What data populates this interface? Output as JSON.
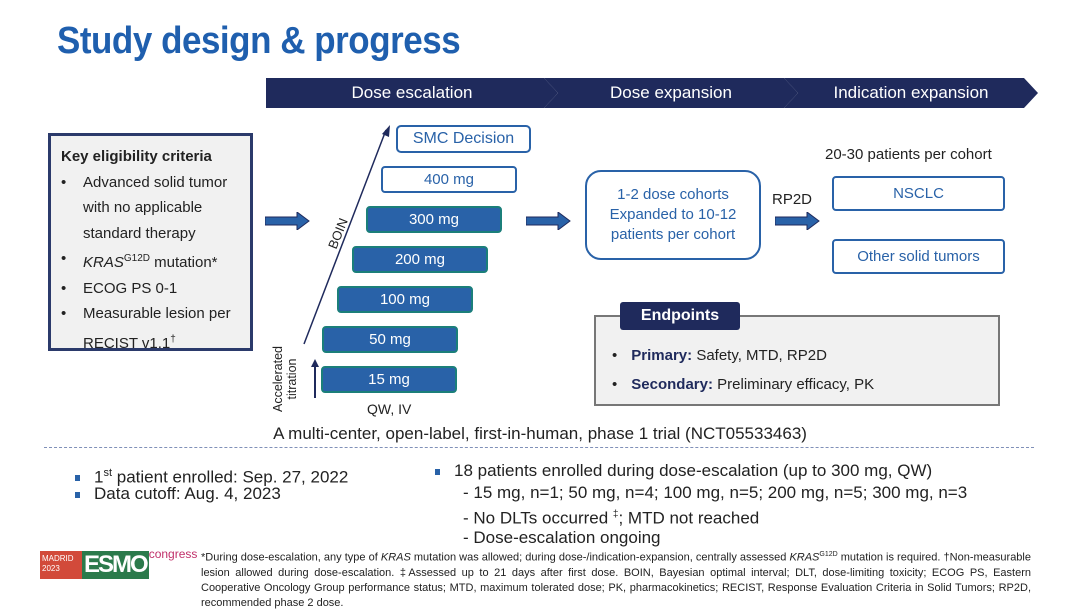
{
  "title": "Study design & progress",
  "phases": [
    "Dose escalation",
    "Dose expansion",
    "Indication expansion"
  ],
  "criteria": {
    "heading": "Key eligibility criteria",
    "items": [
      {
        "pre": "",
        "italic": "",
        "text": "Advanced solid tumor with no applicable standard therapy"
      },
      {
        "italic": "KRAS",
        "sup": "G12D",
        "text": " mutation*"
      },
      {
        "text": "ECOG PS 0-1"
      },
      {
        "text": "Measurable lesion per RECIST v1.1",
        "sup": "†"
      }
    ]
  },
  "escalation": {
    "smc": "SMC Decision",
    "doses": [
      "400 mg",
      "300 mg",
      "200 mg",
      "100 mg",
      "50 mg",
      "15 mg"
    ],
    "boin": "BOIN",
    "accel": "Accelerated titration",
    "schedule": "QW, IV"
  },
  "expansion": {
    "text": "1-2 dose cohorts Expanded to 10-12 patients per cohort",
    "rp2d": "RP2D"
  },
  "indication": {
    "header": "20-30 patients per cohort",
    "cohorts": [
      "NSCLC",
      "Other solid tumors"
    ]
  },
  "endpoints": {
    "heading": "Endpoints",
    "primary_label": "Primary:",
    "primary": "Safety, MTD, RP2D",
    "secondary_label": "Secondary:",
    "secondary": "Preliminary efficacy, PK"
  },
  "trial": "A multi-center, open-label, first-in-human, phase 1 trial (NCT05533463)",
  "progress": {
    "first_sup": "st",
    "first_pre": "1",
    "first": " patient enrolled: Sep. 27, 2022",
    "cutoff": "Data cutoff: Aug. 4, 2023",
    "enrolled": "18 patients enrolled during dose-escalation (up to 300 mg, QW)",
    "sub1": "- 15 mg, n=1; 50 mg, n=4; 100 mg, n=5; 200 mg, n=5; 300 mg, n=3",
    "sub2a": "- No DLTs occurred ",
    "sub2sup": "‡",
    "sub2b": "; MTD not reached",
    "sub3": "- Dose-escalation ongoing"
  },
  "logo": {
    "city": "MADRID 2023",
    "brand": "ESMO",
    "word": "congress"
  },
  "footnote": {
    "a": "*During dose-escalation, any type of ",
    "b": "KRAS",
    "c": " mutation was allowed; during dose-/indication-expansion, centrally assessed ",
    "d": "KRAS",
    "e": "G12D",
    "f": " mutation is required. †Non-measurable lesion allowed during dose-escalation. ‡Assessed up to 21 days after first dose. BOIN, Bayesian optimal interval; DLT, dose-limiting toxicity; ECOG PS, Eastern Cooperative Oncology Group performance status; MTD, maximum tolerated dose; PK, pharmacokinetics;  RECIST, Response Evaluation Criteria in Solid Tumors; RP2D, recommended phase 2 dose."
  }
}
